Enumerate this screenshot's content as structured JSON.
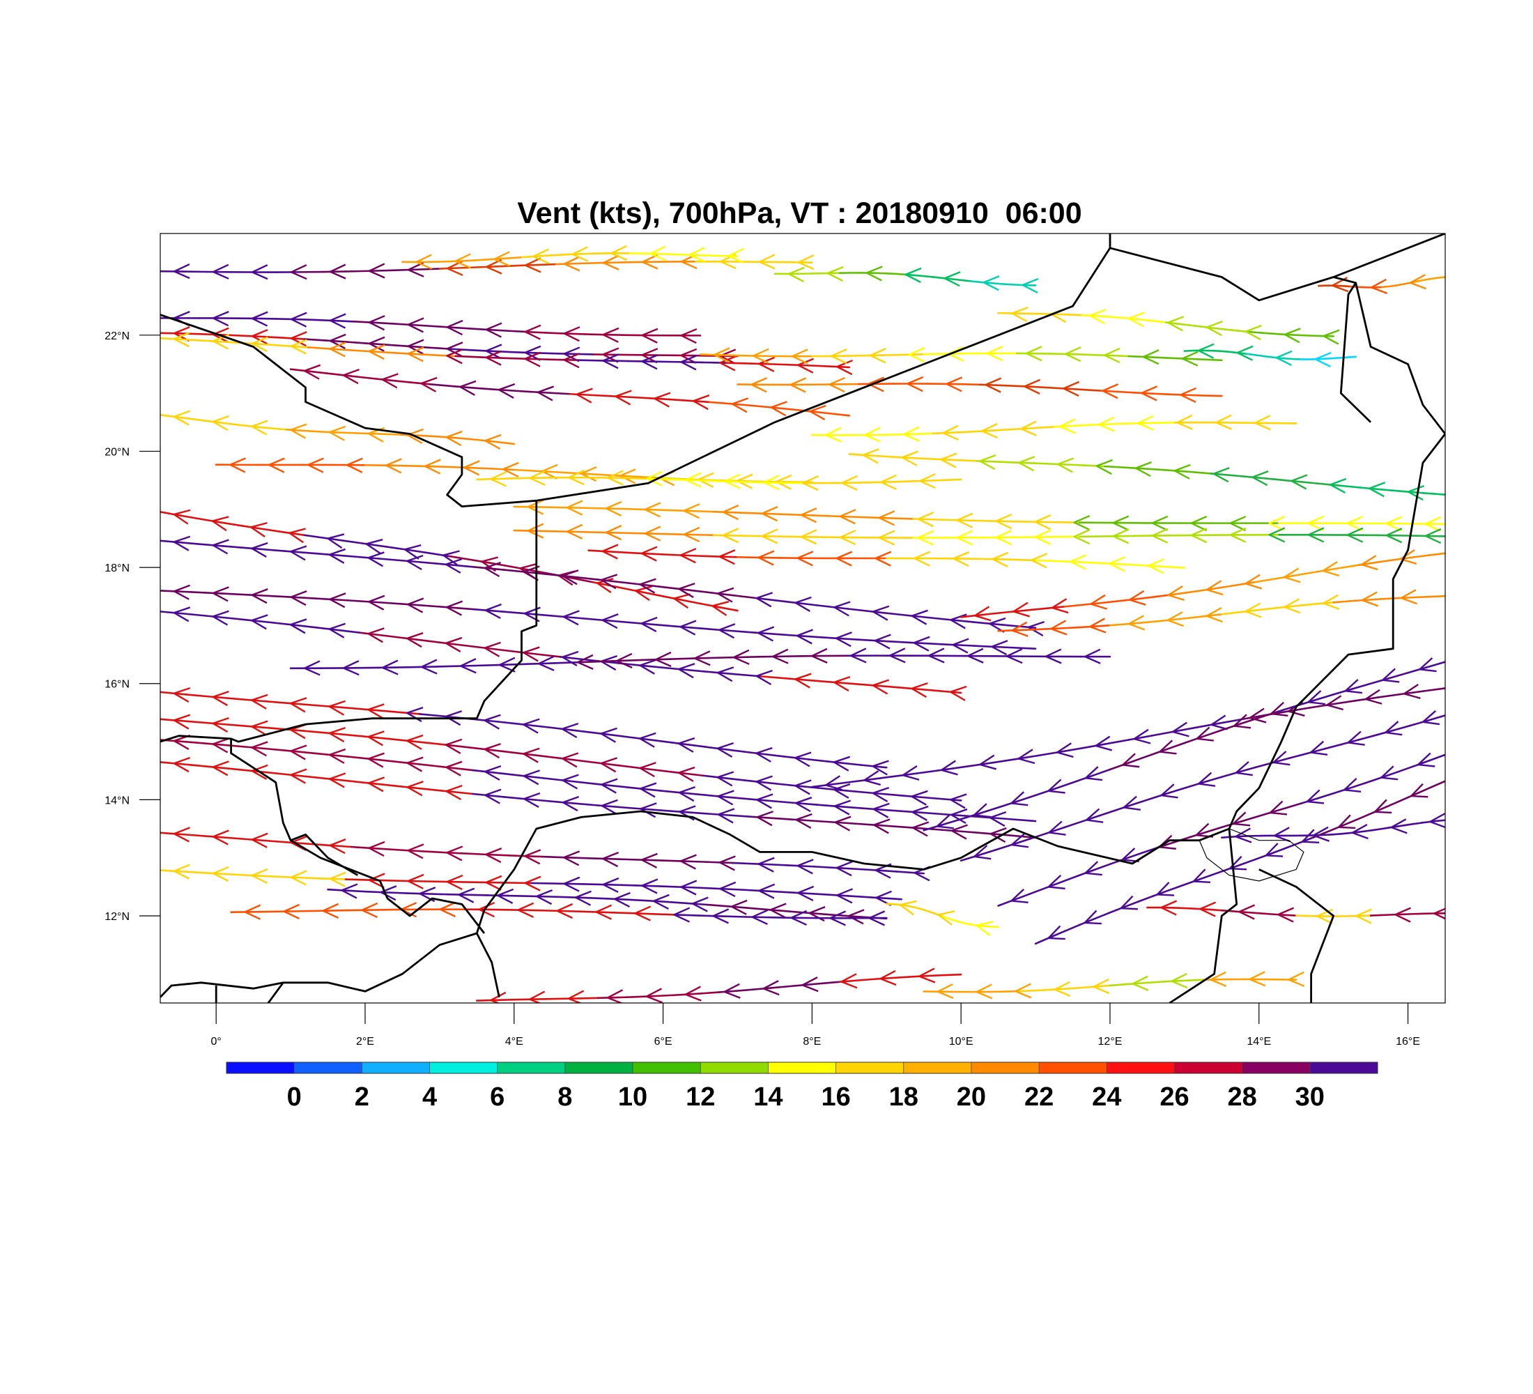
{
  "title": "Vent (kts), 700hPa, VT : 20180910  06:00",
  "map": {
    "lon_range": [
      -0.75,
      16.5
    ],
    "lat_range": [
      10.5,
      23.75
    ],
    "lat_ticks": [
      {
        "value": 12,
        "label": "12°N"
      },
      {
        "value": 14,
        "label": "14°N"
      },
      {
        "value": 16,
        "label": "16°N"
      },
      {
        "value": 18,
        "label": "18°N"
      },
      {
        "value": 20,
        "label": "20°N"
      },
      {
        "value": 22,
        "label": "22°N"
      }
    ],
    "lon_ticks": [
      {
        "value": 0,
        "label": "0°"
      },
      {
        "value": 2,
        "label": "2°E"
      },
      {
        "value": 4,
        "label": "4°E"
      },
      {
        "value": 6,
        "label": "6°E"
      },
      {
        "value": 8,
        "label": "8°E"
      },
      {
        "value": 10,
        "label": "10°E"
      },
      {
        "value": 12,
        "label": "12°E"
      },
      {
        "value": 14,
        "label": "14°E"
      },
      {
        "value": 16,
        "label": "16°E"
      }
    ],
    "border_color": "#000000",
    "streamlines": [
      {
        "lat": 23.1,
        "lat_end": 23.25,
        "lon_start": -0.75,
        "lon_end": 8.0,
        "colors": [
          "#4b0a96",
          "#6e0060",
          "#e03a00",
          "#ff8a00",
          "#ffd400"
        ]
      },
      {
        "lat": 23.3,
        "lat_end": 23.4,
        "lon_start": 2.5,
        "lon_end": 7.0,
        "colors": [
          "#ffa000",
          "#ffd400",
          "#ffff00"
        ]
      },
      {
        "lat": 23.1,
        "lat_end": 22.9,
        "lon_start": 7.5,
        "lon_end": 11.0,
        "colors": [
          "#b0e000",
          "#60c000",
          "#00c060",
          "#00d0b0"
        ]
      },
      {
        "lat": 22.3,
        "lat_end": 22.0,
        "lon_start": -0.75,
        "lon_end": 6.5,
        "colors": [
          "#4b0a96",
          "#6e0060",
          "#a00040"
        ]
      },
      {
        "lat": 22.0,
        "lat_end": 21.6,
        "lon_start": -0.75,
        "lon_end": 7.0,
        "colors": [
          "#e01010",
          "#6e0060",
          "#4b0a96",
          "#a00040"
        ]
      },
      {
        "lat": 21.9,
        "lat_end": 21.4,
        "lon_start": -0.75,
        "lon_end": 8.5,
        "colors": [
          "#ffd400",
          "#ff8a00",
          "#a00040",
          "#4b0a96",
          "#e01010"
        ]
      },
      {
        "lat": 21.4,
        "lat_end": 20.6,
        "lon_start": 1.0,
        "lon_end": 8.5,
        "colors": [
          "#a00040",
          "#6e0060",
          "#e01010",
          "#ff5000"
        ]
      },
      {
        "lat": 21.7,
        "lat_end": 21.6,
        "lon_start": 6.5,
        "lon_end": 13.5,
        "colors": [
          "#ffa000",
          "#ffd400",
          "#ffff00",
          "#b0e000",
          "#60c000"
        ]
      },
      {
        "lat": 21.2,
        "lat_end": 21.0,
        "lon_start": 7.0,
        "lon_end": 13.5,
        "colors": [
          "#ff8a00",
          "#ff5000",
          "#e03a00",
          "#ff5000"
        ]
      },
      {
        "lat": 22.4,
        "lat_end": 22.0,
        "lon_start": 10.5,
        "lon_end": 15.0,
        "colors": [
          "#ffd400",
          "#ffff00",
          "#b0e000",
          "#60c000"
        ]
      },
      {
        "lat": 21.7,
        "lat_end": 21.6,
        "lon_start": 13.0,
        "lon_end": 15.3,
        "colors": [
          "#00c060",
          "#00d0b0",
          "#00d8ff"
        ]
      },
      {
        "lat": 22.8,
        "lat_end": 22.95,
        "lon_start": 14.8,
        "lon_end": 16.5,
        "colors": [
          "#e03a00",
          "#ff5000",
          "#ff8a00",
          "#ffa000"
        ]
      },
      {
        "lat": 20.6,
        "lat_end": 20.1,
        "lon_start": -0.75,
        "lon_end": 4.0,
        "colors": [
          "#ffd400",
          "#ffa000",
          "#ff8a00"
        ]
      },
      {
        "lat": 20.3,
        "lat_end": 20.5,
        "lon_start": 8.0,
        "lon_end": 14.5,
        "colors": [
          "#ffff00",
          "#ffd400",
          "#ffff00",
          "#ffd400"
        ]
      },
      {
        "lat": 20.0,
        "lat_end": 19.3,
        "lon_start": 8.5,
        "lon_end": 16.5,
        "colors": [
          "#ffd400",
          "#b0e000",
          "#60c000",
          "#20b040",
          "#00c060"
        ]
      },
      {
        "lat": 19.8,
        "lat_end": 19.5,
        "lon_start": 0.0,
        "lon_end": 8.0,
        "colors": [
          "#ff5000",
          "#ff8a00",
          "#ffa000",
          "#ffd400"
        ]
      },
      {
        "lat": 19.5,
        "lat_end": 19.5,
        "lon_start": 3.5,
        "lon_end": 10.0,
        "colors": [
          "#ffd400",
          "#ffff00",
          "#ffd400"
        ]
      },
      {
        "lat": 19.0,
        "lat_end": 18.7,
        "lon_start": 4.0,
        "lon_end": 16.5,
        "colors": [
          "#ffa000",
          "#ff8a00",
          "#ffd400",
          "#60c000",
          "#ffff00"
        ]
      },
      {
        "lat": 18.6,
        "lat_end": 18.5,
        "lon_start": 4.0,
        "lon_end": 16.5,
        "colors": [
          "#ff8a00",
          "#ffd400",
          "#ffff00",
          "#b0e000",
          "#20b040"
        ]
      },
      {
        "lat": 18.3,
        "lat_end": 18.0,
        "lon_start": 5.0,
        "lon_end": 13.0,
        "colors": [
          "#e01010",
          "#ff5000",
          "#ffd400",
          "#ffff00"
        ]
      },
      {
        "lat": 19.0,
        "lat_end": 17.3,
        "lon_start": -0.75,
        "lon_end": 7.0,
        "colors": [
          "#e01010",
          "#4b0a96",
          "#a00040",
          "#e01010"
        ]
      },
      {
        "lat": 18.5,
        "lat_end": 17.0,
        "lon_start": -0.75,
        "lon_end": 11.0,
        "colors": [
          "#4b0a96",
          "#6e0060",
          "#4b0a96"
        ]
      },
      {
        "lat": 17.6,
        "lat_end": 16.6,
        "lon_start": -0.75,
        "lon_end": 11.0,
        "colors": [
          "#6e0060",
          "#4b0a96",
          "#4b0a96"
        ]
      },
      {
        "lat": 17.2,
        "lat_end": 15.8,
        "lon_start": -0.75,
        "lon_end": 10.0,
        "colors": [
          "#4b0a96",
          "#a00040",
          "#4b0a96",
          "#e01010"
        ]
      },
      {
        "lat": 17.1,
        "lat_end": 18.2,
        "lon_start": 10.0,
        "lon_end": 16.5,
        "colors": [
          "#e01010",
          "#ff5000",
          "#ff8a00",
          "#ffa000",
          "#ff8a00"
        ]
      },
      {
        "lat": 16.9,
        "lat_end": 17.5,
        "lon_start": 10.5,
        "lon_end": 16.5,
        "colors": [
          "#ff5000",
          "#ffa000",
          "#ffd400",
          "#ff8a00"
        ]
      },
      {
        "lat": 16.3,
        "lat_end": 16.5,
        "lon_start": 1.0,
        "lon_end": 12.0,
        "colors": [
          "#4b0a96",
          "#6e0060",
          "#4b0a96"
        ]
      },
      {
        "lat": 15.9,
        "lat_end": 14.6,
        "lon_start": -0.75,
        "lon_end": 9.0,
        "colors": [
          "#e01010",
          "#4b0a96",
          "#4b0a96"
        ]
      },
      {
        "lat": 15.4,
        "lat_end": 14.0,
        "lon_start": -0.75,
        "lon_end": 10.0,
        "colors": [
          "#e01010",
          "#a00040",
          "#4b0a96"
        ]
      },
      {
        "lat": 15.0,
        "lat_end": 13.6,
        "lon_start": -0.75,
        "lon_end": 11.0,
        "colors": [
          "#a00040",
          "#4b0a96",
          "#4b0a96"
        ]
      },
      {
        "lat": 14.6,
        "lat_end": 13.3,
        "lon_start": -0.75,
        "lon_end": 11.0,
        "colors": [
          "#e01010",
          "#4b0a96",
          "#6e0060"
        ]
      },
      {
        "lat": 14.2,
        "lat_end": 15.9,
        "lon_start": 8.0,
        "lon_end": 16.5,
        "colors": [
          "#4b0a96",
          "#4b0a96",
          "#6e0060"
        ]
      },
      {
        "lat": 13.5,
        "lat_end": 16.4,
        "lon_start": 9.5,
        "lon_end": 16.5,
        "colors": [
          "#4b0a96",
          "#6e0060",
          "#4b0a96"
        ]
      },
      {
        "lat": 13.0,
        "lat_end": 15.5,
        "lon_start": 10.0,
        "lon_end": 16.5,
        "colors": [
          "#4b0a96",
          "#4b0a96",
          "#4b0a96"
        ]
      },
      {
        "lat": 12.2,
        "lat_end": 14.8,
        "lon_start": 10.5,
        "lon_end": 16.5,
        "colors": [
          "#4b0a96",
          "#6e0060",
          "#4b0a96"
        ]
      },
      {
        "lat": 11.5,
        "lat_end": 14.3,
        "lon_start": 11.0,
        "lon_end": 16.5,
        "colors": [
          "#4b0a96",
          "#4b0a96",
          "#6e0060"
        ]
      },
      {
        "lat": 13.3,
        "lat_end": 13.6,
        "lon_start": 13.5,
        "lon_end": 16.5,
        "colors": [
          "#4b0a96",
          "#4b0a96"
        ]
      },
      {
        "lat": 13.4,
        "lat_end": 12.7,
        "lon_start": -0.75,
        "lon_end": 9.5,
        "colors": [
          "#e01010",
          "#a00040",
          "#6e0060",
          "#4b0a96"
        ]
      },
      {
        "lat": 12.8,
        "lat_end": 12.3,
        "lon_start": -0.75,
        "lon_end": 9.2,
        "colors": [
          "#ffd400",
          "#e01010",
          "#4b0a96",
          "#4b0a96"
        ]
      },
      {
        "lat": 12.5,
        "lat_end": 12.0,
        "lon_start": 1.5,
        "lon_end": 9.0,
        "colors": [
          "#4b0a96",
          "#4b0a96",
          "#6e0060"
        ]
      },
      {
        "lat": 12.1,
        "lat_end": 12.0,
        "lon_start": 0.2,
        "lon_end": 9.0,
        "colors": [
          "#ff5000",
          "#e01010",
          "#4b0a96"
        ]
      },
      {
        "lat": 12.2,
        "lat_end": 11.8,
        "lon_start": 9.0,
        "lon_end": 10.5,
        "colors": [
          "#ffd400",
          "#ffff00"
        ]
      },
      {
        "lat": 12.1,
        "lat_end": 12.0,
        "lon_start": 12.5,
        "lon_end": 16.5,
        "colors": [
          "#e01010",
          "#a00040",
          "#ffd400",
          "#a00040"
        ]
      },
      {
        "lat": 10.5,
        "lat_end": 10.95,
        "lon_start": 3.5,
        "lon_end": 10.0,
        "colors": [
          "#e01010",
          "#a00040",
          "#6e0060",
          "#e01010"
        ]
      },
      {
        "lat": 10.7,
        "lat_end": 10.9,
        "lon_start": 9.5,
        "lon_end": 14.5,
        "colors": [
          "#ffa000",
          "#ffd400",
          "#b0e000",
          "#ffa000"
        ]
      }
    ],
    "borders": [
      [
        [
          -0.75,
          22.35
        ],
        [
          0.5,
          21.8
        ],
        [
          1.2,
          21.1
        ],
        [
          1.2,
          20.85
        ],
        [
          2.0,
          20.4
        ],
        [
          2.6,
          20.3
        ],
        [
          3.3,
          19.9
        ],
        [
          3.3,
          19.6
        ],
        [
          3.1,
          19.25
        ],
        [
          3.3,
          19.05
        ],
        [
          4.3,
          19.15
        ],
        [
          5.8,
          19.45
        ],
        [
          7.5,
          20.5
        ],
        [
          9.5,
          21.5
        ],
        [
          11.5,
          22.5
        ],
        [
          12.0,
          23.5
        ],
        [
          12.0,
          23.75
        ]
      ],
      [
        [
          12.0,
          23.5
        ],
        [
          13.5,
          23.0
        ],
        [
          14.0,
          22.6
        ],
        [
          15.0,
          23.0
        ],
        [
          15.3,
          22.9
        ],
        [
          15.5,
          21.8
        ],
        [
          16.0,
          21.5
        ],
        [
          16.2,
          20.8
        ],
        [
          16.5,
          20.3
        ],
        [
          16.2,
          19.8
        ],
        [
          16.0,
          18.3
        ],
        [
          15.8,
          17.8
        ],
        [
          15.8,
          16.6
        ],
        [
          15.2,
          16.5
        ],
        [
          14.5,
          15.6
        ],
        [
          14.3,
          15.0
        ],
        [
          14.0,
          14.2
        ],
        [
          13.7,
          13.8
        ],
        [
          13.6,
          13.5
        ],
        [
          13.2,
          13.3
        ],
        [
          12.8,
          13.3
        ],
        [
          12.3,
          12.9
        ],
        [
          11.3,
          13.2
        ],
        [
          10.7,
          13.5
        ],
        [
          10.0,
          13.0
        ],
        [
          9.5,
          12.8
        ],
        [
          8.7,
          12.9
        ],
        [
          8.0,
          13.1
        ],
        [
          7.3,
          13.1
        ],
        [
          6.9,
          13.4
        ],
        [
          6.4,
          13.7
        ],
        [
          5.7,
          13.8
        ],
        [
          4.9,
          13.7
        ],
        [
          4.3,
          13.5
        ],
        [
          4.0,
          12.8
        ],
        [
          3.6,
          12.1
        ],
        [
          3.5,
          11.7
        ],
        [
          3.7,
          11.2
        ],
        [
          3.8,
          10.6
        ]
      ],
      [
        [
          4.3,
          19.15
        ],
        [
          4.3,
          17.0
        ],
        [
          4.1,
          16.9
        ],
        [
          4.1,
          16.4
        ],
        [
          3.6,
          15.7
        ],
        [
          3.5,
          15.4
        ],
        [
          2.1,
          15.4
        ],
        [
          1.2,
          15.3
        ],
        [
          0.3,
          15.0
        ],
        [
          0.2,
          15.05
        ],
        [
          -0.5,
          15.1
        ],
        [
          -0.75,
          15.0
        ]
      ],
      [
        [
          0.2,
          15.05
        ],
        [
          0.2,
          14.8
        ],
        [
          0.8,
          14.3
        ],
        [
          0.9,
          13.6
        ],
        [
          1.0,
          13.3
        ],
        [
          1.4,
          13.0
        ],
        [
          2.0,
          12.7
        ],
        [
          2.2,
          12.6
        ],
        [
          2.3,
          12.3
        ],
        [
          2.6,
          12.0
        ],
        [
          2.9,
          12.3
        ],
        [
          3.3,
          12.2
        ],
        [
          3.6,
          11.7
        ]
      ],
      [
        [
          1.0,
          13.3
        ],
        [
          1.2,
          13.4
        ],
        [
          1.5,
          13.0
        ],
        [
          1.9,
          12.7
        ]
      ],
      [
        [
          -0.75,
          10.6
        ],
        [
          -0.6,
          10.8
        ],
        [
          -0.2,
          10.85
        ],
        [
          0.5,
          10.75
        ],
        [
          0.9,
          10.85
        ],
        [
          1.5,
          10.85
        ],
        [
          2.0,
          10.7
        ],
        [
          2.5,
          11.0
        ],
        [
          3.0,
          11.5
        ],
        [
          3.5,
          11.7
        ]
      ],
      [
        [
          0.0,
          10.5
        ],
        [
          0.0,
          10.8
        ]
      ],
      [
        [
          0.9,
          10.85
        ],
        [
          0.7,
          10.5
        ]
      ],
      [
        [
          13.6,
          13.5
        ],
        [
          13.7,
          12.2
        ],
        [
          13.5,
          12.0
        ],
        [
          13.4,
          11.0
        ],
        [
          12.8,
          10.5
        ]
      ],
      [
        [
          15.3,
          22.9
        ],
        [
          15.2,
          22.7
        ],
        [
          15.1,
          21.0
        ],
        [
          15.5,
          20.5
        ]
      ],
      [
        [
          14.7,
          10.5
        ],
        [
          14.7,
          11.0
        ],
        [
          15.0,
          12.0
        ],
        [
          14.5,
          12.5
        ],
        [
          14.0,
          12.8
        ]
      ],
      [
        [
          15.0,
          23.0
        ],
        [
          16.5,
          23.75
        ]
      ]
    ],
    "lake": [
      [
        13.2,
        13.3
      ],
      [
        13.6,
        13.5
      ],
      [
        14.0,
        13.3
      ],
      [
        14.4,
        13.3
      ],
      [
        14.6,
        13.1
      ],
      [
        14.5,
        12.8
      ],
      [
        14.0,
        12.6
      ],
      [
        13.6,
        12.7
      ],
      [
        13.3,
        13.0
      ],
      [
        13.2,
        13.3
      ]
    ]
  },
  "colorbar": {
    "labels": [
      "0",
      "2",
      "4",
      "6",
      "8",
      "10",
      "12",
      "14",
      "16",
      "18",
      "20",
      "22",
      "24",
      "26",
      "28",
      "30"
    ],
    "colors": [
      "#0a10ff",
      "#1060ff",
      "#10b0ff",
      "#00f0e0",
      "#00d080",
      "#00b040",
      "#40c000",
      "#90dc00",
      "#ffff00",
      "#ffd400",
      "#ffb000",
      "#ff8a00",
      "#ff5000",
      "#ff1010",
      "#cc0030",
      "#880060",
      "#4b0a96"
    ]
  }
}
